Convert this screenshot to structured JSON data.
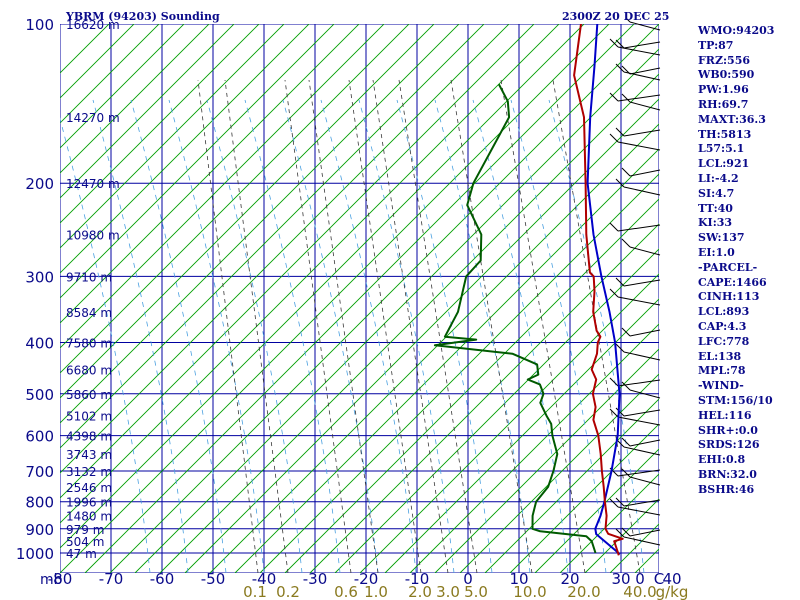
{
  "header": {
    "title": "YBRM (94203) Sounding",
    "valid_time": "2300Z 20 DEC 25"
  },
  "indices": [
    "WMO:94203",
    "TP:87",
    "FRZ:556",
    "WB0:590",
    "PW:1.96",
    "RH:69.7",
    "MAXT:36.3",
    "TH:5813",
    "L57:5.1",
    "LCL:921",
    "LI:-4.2",
    "SI:4.7",
    "TT:40",
    "KI:33",
    "SW:137",
    "EI:1.0",
    "-PARCEL-",
    "CAPE:1466",
    "CINH:113",
    "LCL:893",
    "CAP:4.3",
    "LFC:778",
    "EL:138",
    "MPL:78",
    "-WIND-",
    "STM:156/10",
    "HEL:116",
    "SHR+:0.0",
    "SRDS:126",
    "EHI:0.8",
    "BRN:32.0",
    "BSHR:46"
  ],
  "colors": {
    "grid": "#0000a0",
    "dry_adiabat": "#00a000",
    "mixing_ratio": "#3a3a3a",
    "moist_adiabat": "#4aa0e0",
    "temperature": "#b00000",
    "dewpoint": "#005a00",
    "parcel": "#0000c8",
    "text": "#0a0a8a",
    "mixing_ratio_labels": "#8a7a20",
    "wind_barb": "#000000"
  },
  "chart_data": {
    "type": "skew-t",
    "pressure_axis": {
      "unit_label": "mb",
      "ticks": [
        100,
        200,
        300,
        400,
        500,
        600,
        700,
        800,
        900,
        1000
      ],
      "range": [
        100,
        1050
      ],
      "scale": "log"
    },
    "temperature_axis": {
      "ticks": [
        -80,
        -70,
        -60,
        -50,
        -40,
        -30,
        -20,
        -10,
        0,
        10,
        20,
        30,
        40
      ],
      "labels": [
        "-80",
        "-70",
        "-60",
        "-50",
        "-40",
        "-30",
        "-20",
        "-10",
        "0",
        "10",
        "20",
        "30",
        "40"
      ],
      "skewed": true
    },
    "height_labels": [
      {
        "p": 100,
        "label": "16620 m"
      },
      {
        "p": 150,
        "label": "14270 m"
      },
      {
        "p": 200,
        "label": "12470 m"
      },
      {
        "p": 250,
        "label": "10980 m"
      },
      {
        "p": 300,
        "label": "9710 m"
      },
      {
        "p": 350,
        "label": "8584 m"
      },
      {
        "p": 400,
        "label": "7580 m"
      },
      {
        "p": 450,
        "label": "6680 m"
      },
      {
        "p": 500,
        "label": "5860 m"
      },
      {
        "p": 550,
        "label": "5102 m"
      },
      {
        "p": 600,
        "label": "4398 m"
      },
      {
        "p": 650,
        "label": "3743 m"
      },
      {
        "p": 700,
        "label": "3132 m"
      },
      {
        "p": 750,
        "label": "2546 m"
      },
      {
        "p": 800,
        "label": "1996 m"
      },
      {
        "p": 850,
        "label": "1480 m"
      },
      {
        "p": 900,
        "label": "979 m"
      },
      {
        "p": 950,
        "label": "504 m"
      },
      {
        "p": 1000,
        "label": "47 m"
      }
    ],
    "mixing_ratio_labels": [
      "0.1",
      "0.2",
      "0.6",
      "1.0",
      "2.0",
      "3.0",
      "5.0",
      "10.0",
      "20.0",
      "40.0"
    ],
    "mixing_ratio_values": [
      0.1,
      0.2,
      0.6,
      1.0,
      2.0,
      3.0,
      5.0,
      10.0,
      20.0,
      40.0
    ],
    "mixing_ratio_unit": "g/kg",
    "wind_axis_labels": [
      "0",
      "C"
    ],
    "temperature": [
      {
        "p": 1010,
        "t": 30
      },
      {
        "p": 950,
        "t": 26.4
      },
      {
        "p": 940,
        "t": 27.6
      },
      {
        "p": 920,
        "t": 23.8
      },
      {
        "p": 900,
        "t": 22.3
      },
      {
        "p": 850,
        "t": 20
      },
      {
        "p": 800,
        "t": 17
      },
      {
        "p": 750,
        "t": 13.9
      },
      {
        "p": 700,
        "t": 10.5
      },
      {
        "p": 650,
        "t": 7
      },
      {
        "p": 600,
        "t": 3
      },
      {
        "p": 560,
        "t": -1
      },
      {
        "p": 545,
        "t": -2
      },
      {
        "p": 530,
        "t": -3
      },
      {
        "p": 500,
        "t": -6.1
      },
      {
        "p": 470,
        "t": -8.2
      },
      {
        "p": 450,
        "t": -11
      },
      {
        "p": 420,
        "t": -13
      },
      {
        "p": 400,
        "t": -15
      },
      {
        "p": 390,
        "t": -15.6
      },
      {
        "p": 380,
        "t": -17.5
      },
      {
        "p": 350,
        "t": -21.8
      },
      {
        "p": 320,
        "t": -25.5
      },
      {
        "p": 300,
        "t": -28.5
      },
      {
        "p": 295,
        "t": -30
      },
      {
        "p": 250,
        "t": -38
      },
      {
        "p": 200,
        "t": -48
      },
      {
        "p": 150,
        "t": -61
      },
      {
        "p": 125,
        "t": -71
      },
      {
        "p": 100,
        "t": -79.5
      }
    ],
    "dewpoint": [
      {
        "p": 1000,
        "t": 25
      },
      {
        "p": 950,
        "t": 22
      },
      {
        "p": 930,
        "t": 20
      },
      {
        "p": 910,
        "t": 10
      },
      {
        "p": 900,
        "t": 8
      },
      {
        "p": 850,
        "t": 5.5
      },
      {
        "p": 800,
        "t": 3.5
      },
      {
        "p": 750,
        "t": 3
      },
      {
        "p": 700,
        "t": 1
      },
      {
        "p": 650,
        "t": -1.5
      },
      {
        "p": 600,
        "t": -6
      },
      {
        "p": 570,
        "t": -8.5
      },
      {
        "p": 550,
        "t": -11
      },
      {
        "p": 520,
        "t": -14.7
      },
      {
        "p": 500,
        "t": -15.8
      },
      {
        "p": 480,
        "t": -18.3
      },
      {
        "p": 470,
        "t": -21.6
      },
      {
        "p": 460,
        "t": -20.5
      },
      {
        "p": 440,
        "t": -22.7
      },
      {
        "p": 420,
        "t": -29.6
      },
      {
        "p": 405,
        "t": -46.4
      },
      {
        "p": 395,
        "t": -39.4
      },
      {
        "p": 390,
        "t": -46.1
      },
      {
        "p": 350,
        "t": -48.3
      },
      {
        "p": 300,
        "t": -53.5
      },
      {
        "p": 280,
        "t": -53.7
      },
      {
        "p": 250,
        "t": -58.6
      },
      {
        "p": 220,
        "t": -67
      },
      {
        "p": 200,
        "t": -70
      },
      {
        "p": 150,
        "t": -75.7
      },
      {
        "p": 140,
        "t": -79
      },
      {
        "p": 130,
        "t": -84
      }
    ],
    "parcel": [
      {
        "p": 1005,
        "t": 30
      },
      {
        "p": 921,
        "t": 21.5
      },
      {
        "p": 900,
        "t": 20.3
      },
      {
        "p": 850,
        "t": 18.8
      },
      {
        "p": 800,
        "t": 16.9
      },
      {
        "p": 700,
        "t": 12.4
      },
      {
        "p": 600,
        "t": 6.8
      },
      {
        "p": 500,
        "t": -0.9
      },
      {
        "p": 400,
        "t": -11.6
      },
      {
        "p": 350,
        "t": -18.6
      },
      {
        "p": 300,
        "t": -27
      },
      {
        "p": 250,
        "t": -36.6
      },
      {
        "p": 200,
        "t": -47.6
      },
      {
        "p": 150,
        "t": -59.8
      },
      {
        "p": 120,
        "t": -68.8
      },
      {
        "p": 100,
        "t": -76.3
      }
    ],
    "grid": true
  }
}
